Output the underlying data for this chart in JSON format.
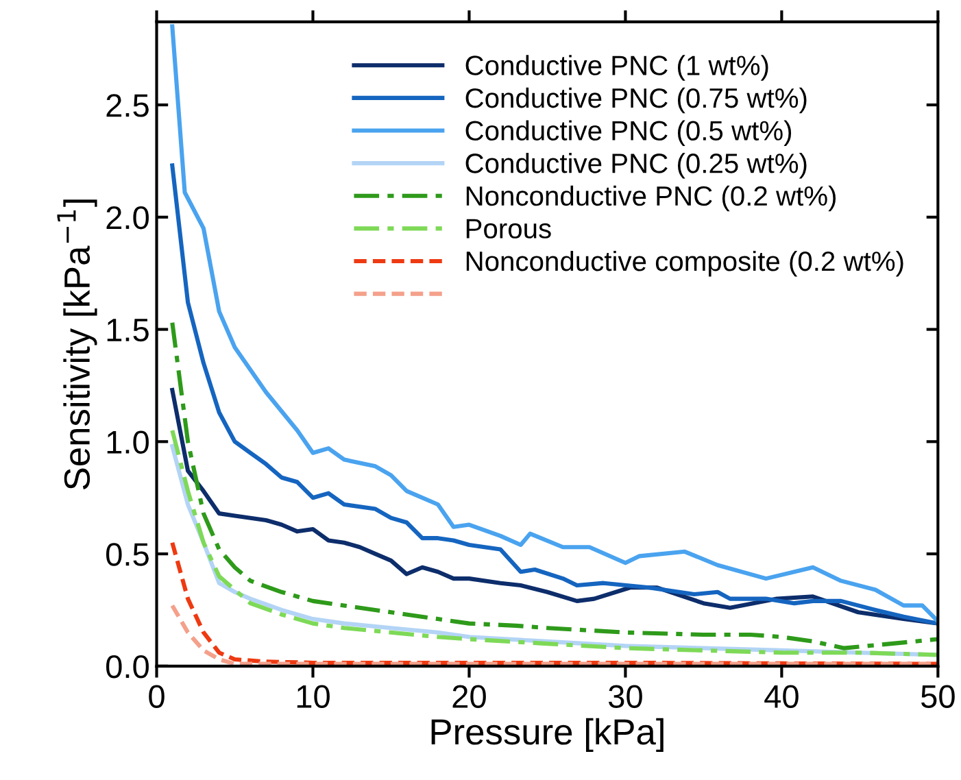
{
  "chart_data": {
    "type": "line",
    "xlabel": "Pressure [kPa]",
    "ylabel": "Sensitivity [kPa$^{−1}$]",
    "xlim": [
      0,
      50
    ],
    "xticks": [
      0,
      10,
      20,
      30,
      40,
      50
    ],
    "ylim": [
      0,
      2.87
    ],
    "yticks": [
      {
        "value": 0,
        "label": "0.0"
      },
      0.5,
      {
        "value": 1,
        "label": "1.0"
      },
      1.5,
      {
        "value": 2,
        "label": "2.0"
      },
      2.5
    ],
    "legend": "top right",
    "grid": false,
    "series": [
      {
        "name": "Conductive PNC (1 wt%)",
        "color": "#0d2d6b",
        "line_style": "solid",
        "x": [
          1,
          2,
          3,
          4,
          5,
          6,
          7,
          8,
          9,
          10,
          11,
          12,
          13,
          14,
          15,
          16,
          17,
          18,
          19,
          20,
          22,
          23.3,
          25,
          26.9,
          28,
          30.3,
          32,
          35,
          36.7,
          39.7,
          42,
          44.9,
          47.8,
          50
        ],
        "values": [
          1.23,
          0.87,
          0.78,
          0.68,
          0.67,
          0.66,
          0.65,
          0.63,
          0.6,
          0.61,
          0.56,
          0.55,
          0.53,
          0.5,
          0.47,
          0.41,
          0.44,
          0.42,
          0.39,
          0.39,
          0.37,
          0.36,
          0.33,
          0.29,
          0.3,
          0.35,
          0.35,
          0.28,
          0.26,
          0.3,
          0.31,
          0.24,
          0.21,
          0.19
        ]
      },
      {
        "name": "Conductive PNC (0.75 wt%)",
        "color": "#1565c0",
        "line_style": "solid",
        "x": [
          1,
          2,
          3,
          4,
          5,
          6,
          7,
          8,
          9,
          10,
          11,
          12,
          14,
          15,
          16,
          17,
          18,
          19,
          20,
          22,
          23.3,
          24.2,
          26,
          26.9,
          28.6,
          31.5,
          34.4,
          35.9,
          36.7,
          39,
          40.8,
          42,
          43.8,
          46,
          47.8,
          50
        ],
        "values": [
          2.23,
          1.62,
          1.35,
          1.13,
          1.0,
          0.95,
          0.9,
          0.84,
          0.82,
          0.75,
          0.77,
          0.72,
          0.7,
          0.66,
          0.64,
          0.57,
          0.57,
          0.56,
          0.54,
          0.52,
          0.42,
          0.43,
          0.39,
          0.36,
          0.37,
          0.35,
          0.32,
          0.33,
          0.3,
          0.3,
          0.28,
          0.29,
          0.29,
          0.25,
          0.22,
          0.19
        ]
      },
      {
        "name": "Conductive PNC (0.5 wt%)",
        "color": "#4aa3ef",
        "line_style": "solid",
        "x": [
          1,
          1.8,
          3,
          4,
          5,
          7,
          9,
          10,
          11,
          12,
          14,
          15,
          16,
          18,
          19,
          20,
          22,
          23.3,
          23.9,
          26,
          27.7,
          30,
          30.9,
          33.8,
          35.9,
          39,
          42,
          43.8,
          46,
          47.8,
          49,
          50
        ],
        "values": [
          2.85,
          2.11,
          1.95,
          1.58,
          1.42,
          1.22,
          1.05,
          0.95,
          0.97,
          0.92,
          0.89,
          0.85,
          0.78,
          0.72,
          0.62,
          0.63,
          0.58,
          0.54,
          0.59,
          0.53,
          0.53,
          0.46,
          0.49,
          0.51,
          0.45,
          0.39,
          0.44,
          0.38,
          0.34,
          0.27,
          0.27,
          0.2
        ]
      },
      {
        "name": "Conductive PNC (0.25 wt%)",
        "color": "#b3d4f5",
        "line_style": "solid",
        "x": [
          1,
          2,
          3,
          4,
          5,
          6,
          8,
          10,
          12,
          15,
          18,
          20,
          25,
          30,
          35,
          40,
          45,
          50
        ],
        "values": [
          0.98,
          0.72,
          0.55,
          0.37,
          0.33,
          0.3,
          0.25,
          0.21,
          0.19,
          0.17,
          0.15,
          0.13,
          0.11,
          0.09,
          0.08,
          0.07,
          0.06,
          0.05
        ]
      },
      {
        "name": "Nonconductive PNC (0.2 wt%)",
        "color": "#2e9a1a",
        "line_style": "dashdot",
        "x": [
          1,
          2,
          3,
          4,
          5,
          6,
          8,
          10,
          12,
          15,
          18,
          20,
          23,
          25,
          30,
          35,
          38,
          40,
          42,
          44,
          47,
          50
        ],
        "values": [
          1.53,
          1.0,
          0.68,
          0.52,
          0.44,
          0.38,
          0.33,
          0.29,
          0.27,
          0.24,
          0.21,
          0.19,
          0.18,
          0.17,
          0.15,
          0.14,
          0.14,
          0.13,
          0.11,
          0.08,
          0.1,
          0.12
        ]
      },
      {
        "name": "Porous",
        "color": "#7ed957",
        "line_style": "dashdot",
        "x": [
          1,
          2,
          3,
          4,
          5,
          6,
          8,
          10,
          12,
          15,
          18,
          20,
          25,
          30,
          35,
          40,
          45,
          50
        ],
        "values": [
          1.05,
          0.78,
          0.55,
          0.4,
          0.34,
          0.28,
          0.23,
          0.19,
          0.17,
          0.15,
          0.13,
          0.12,
          0.1,
          0.08,
          0.07,
          0.06,
          0.06,
          0.05
        ]
      },
      {
        "name": "Nonconductive composite (0.2 wt%)",
        "color": "#ee3a12",
        "line_style": "dashed",
        "x": [
          1,
          2,
          3,
          4,
          5,
          7,
          10,
          20,
          30,
          40,
          50
        ],
        "values": [
          0.55,
          0.3,
          0.15,
          0.06,
          0.03,
          0.02,
          0.015,
          0.015,
          0.015,
          0.012,
          0.01
        ]
      },
      {
        "color": "#f4a08a",
        "line_style": "dashed",
        "x": [
          1,
          2,
          3,
          4,
          5,
          10,
          20,
          30,
          40,
          50
        ],
        "values": [
          0.27,
          0.15,
          0.07,
          0.03,
          0.01,
          0.01,
          0.01,
          0.01,
          0.01,
          0.01
        ]
      }
    ]
  }
}
